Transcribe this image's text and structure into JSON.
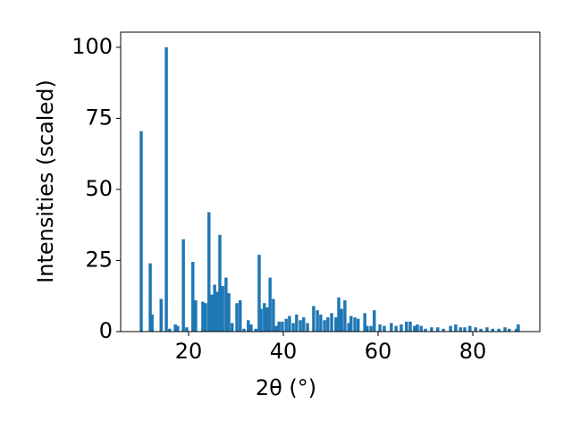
{
  "chart_data": {
    "type": "bar",
    "xlabel": "2θ (°)",
    "ylabel": "Intensities (scaled)",
    "color": "#1f77b4",
    "x": [
      10.0,
      11.9,
      12.3,
      14.2,
      15.3,
      16.0,
      17.2,
      17.7,
      18.9,
      19.6,
      20.9,
      21.5,
      23.0,
      23.6,
      24.3,
      24.9,
      25.5,
      26.0,
      26.6,
      27.2,
      27.9,
      28.5,
      29.2,
      30.2,
      30.9,
      31.7,
      32.6,
      33.2,
      34.2,
      34.9,
      35.3,
      36.0,
      36.6,
      37.2,
      37.9,
      38.5,
      39.1,
      39.8,
      40.6,
      41.3,
      42.1,
      42.8,
      43.6,
      44.3,
      45.1,
      46.4,
      47.2,
      47.9,
      48.7,
      49.4,
      50.2,
      51.1,
      51.7,
      52.3,
      53.0,
      53.8,
      54.3,
      55.1,
      55.8,
      57.2,
      57.7,
      58.5,
      59.2,
      60.4,
      61.3,
      62.8,
      63.8,
      64.9,
      66.0,
      66.8,
      67.7,
      68.3,
      69.1,
      70.0,
      71.3,
      72.6,
      73.8,
      75.3,
      76.4,
      77.4,
      78.3,
      79.4,
      80.6,
      81.7,
      83.0,
      84.2,
      85.5,
      86.8,
      87.7,
      89.2,
      89.6
    ],
    "values": [
      70.5,
      24,
      6,
      11.5,
      100,
      1,
      2.5,
      2,
      32.5,
      1.5,
      24.5,
      11,
      10.5,
      10,
      42,
      13,
      16.5,
      14,
      34,
      16,
      19,
      13.5,
      3,
      10,
      11,
      1,
      4,
      2.5,
      1,
      27,
      8,
      10,
      8.5,
      19,
      11.5,
      2,
      3.5,
      3.5,
      4.5,
      5.5,
      3,
      6,
      4,
      5,
      3,
      9,
      7.5,
      6,
      4,
      5,
      6.5,
      5,
      12,
      8,
      11,
      3,
      5.5,
      5,
      4.5,
      6.5,
      2,
      2,
      7.5,
      2.5,
      2,
      3,
      2,
      2.5,
      3.5,
      3.5,
      2,
      2.5,
      2,
      1,
      1.5,
      1.5,
      1,
      2,
      2.5,
      1.5,
      1.5,
      2,
      1.5,
      1,
      1.5,
      1,
      1,
      1.5,
      1,
      1,
      2.5
    ],
    "xlim": [
      5.66,
      94.15
    ],
    "xticks": [
      20,
      40,
      60,
      80
    ],
    "ylim": [
      0,
      105.3
    ],
    "yticks": [
      0,
      25,
      50,
      75,
      100
    ]
  }
}
